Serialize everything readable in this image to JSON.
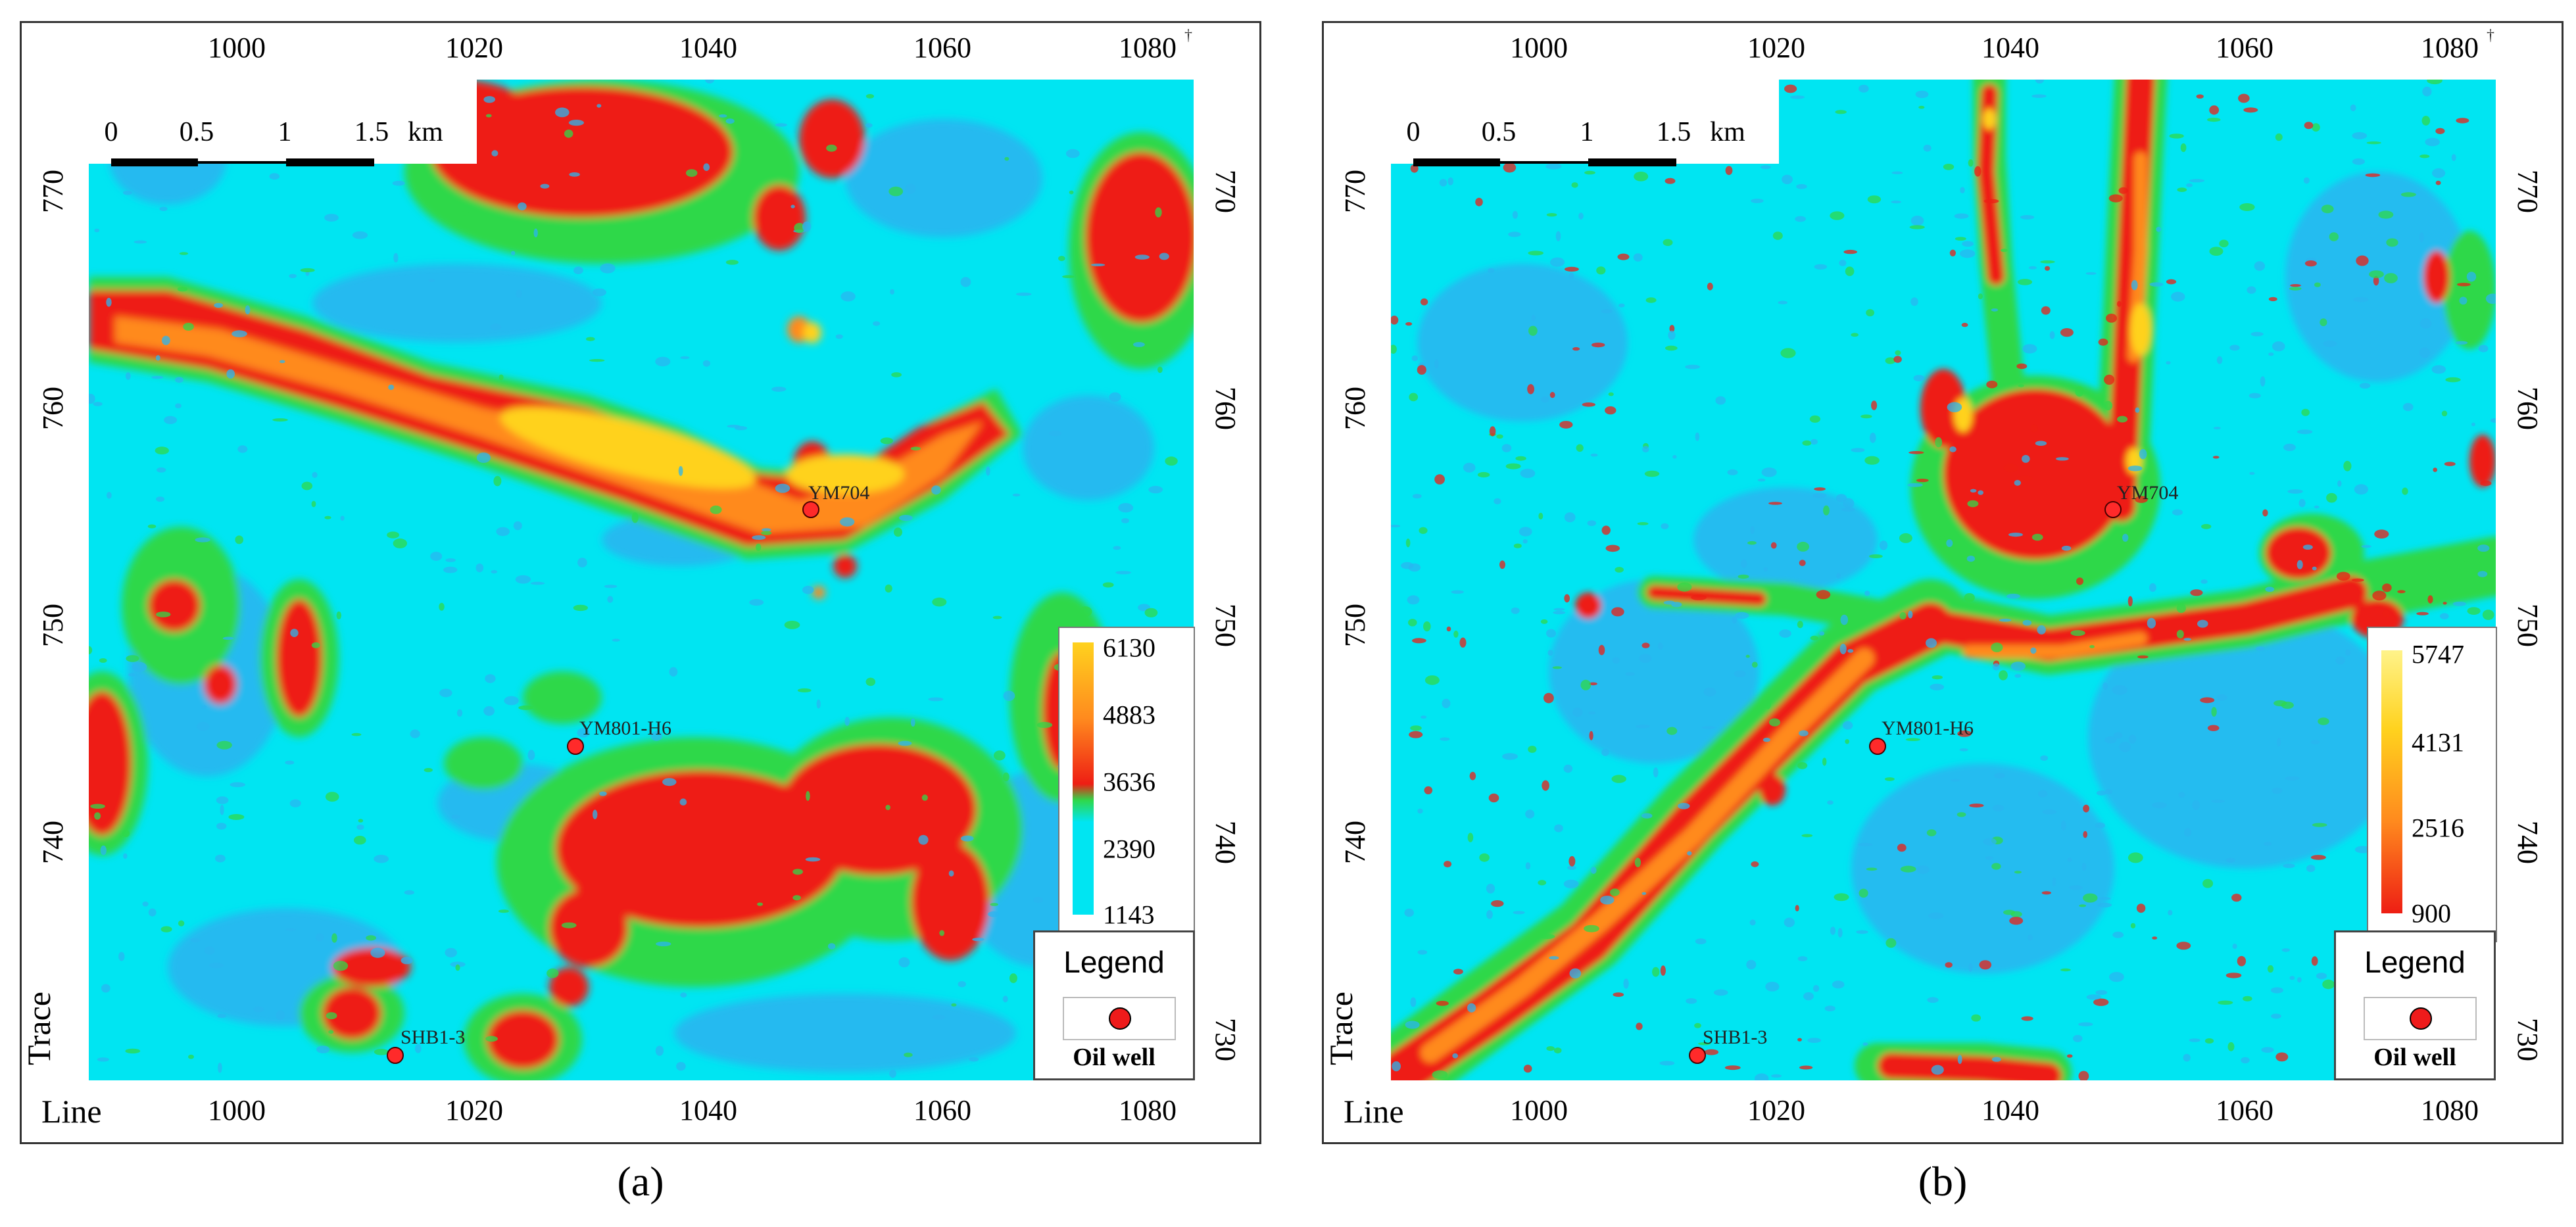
{
  "panels": [
    {
      "id": "a",
      "sub_label": "(a)",
      "x_axis_label": "Line",
      "y_axis_label": "Trace",
      "x_ticks": [
        "1000",
        "1020",
        "1040",
        "1060",
        "1080"
      ],
      "y_ticks": [
        "770",
        "760",
        "750",
        "740",
        "730"
      ],
      "scale": {
        "labels": [
          "0",
          "0.5",
          "1",
          "1.5"
        ],
        "unit": "km"
      },
      "colorbar": {
        "values": [
          "6130",
          "4883",
          "3636",
          "2390",
          "1143"
        ]
      },
      "legend": {
        "title": "Legend",
        "item": "Oil well"
      },
      "wells": [
        {
          "name": "YM704"
        },
        {
          "name": "YM801-H6"
        },
        {
          "name": "SHB1-3"
        }
      ]
    },
    {
      "id": "b",
      "sub_label": "(b)",
      "x_axis_label": "Line",
      "y_axis_label": "Trace",
      "x_ticks": [
        "1000",
        "1020",
        "1040",
        "1060",
        "1080"
      ],
      "y_ticks": [
        "770",
        "760",
        "750",
        "740",
        "730"
      ],
      "scale": {
        "labels": [
          "0",
          "0.5",
          "1",
          "1.5"
        ],
        "unit": "km"
      },
      "colorbar": {
        "values": [
          "5747",
          "4131",
          "2516",
          "900"
        ]
      },
      "legend": {
        "title": "Legend",
        "item": "Oil well"
      },
      "wells": [
        {
          "name": "YM704"
        },
        {
          "name": "YM801-H6"
        },
        {
          "name": "SHB1-3"
        }
      ]
    }
  ],
  "colors": {
    "background_cyan": "#00e5f2",
    "low_blue": "#29b6f0",
    "green": "#2fd84a",
    "red": "#ee1e14",
    "orange": "#ff8a1e",
    "yellow": "#ffd21e",
    "well": "#ff2a2a"
  },
  "icons": {
    "compass": "north-arrow-icon",
    "well": "oil-well-icon"
  }
}
